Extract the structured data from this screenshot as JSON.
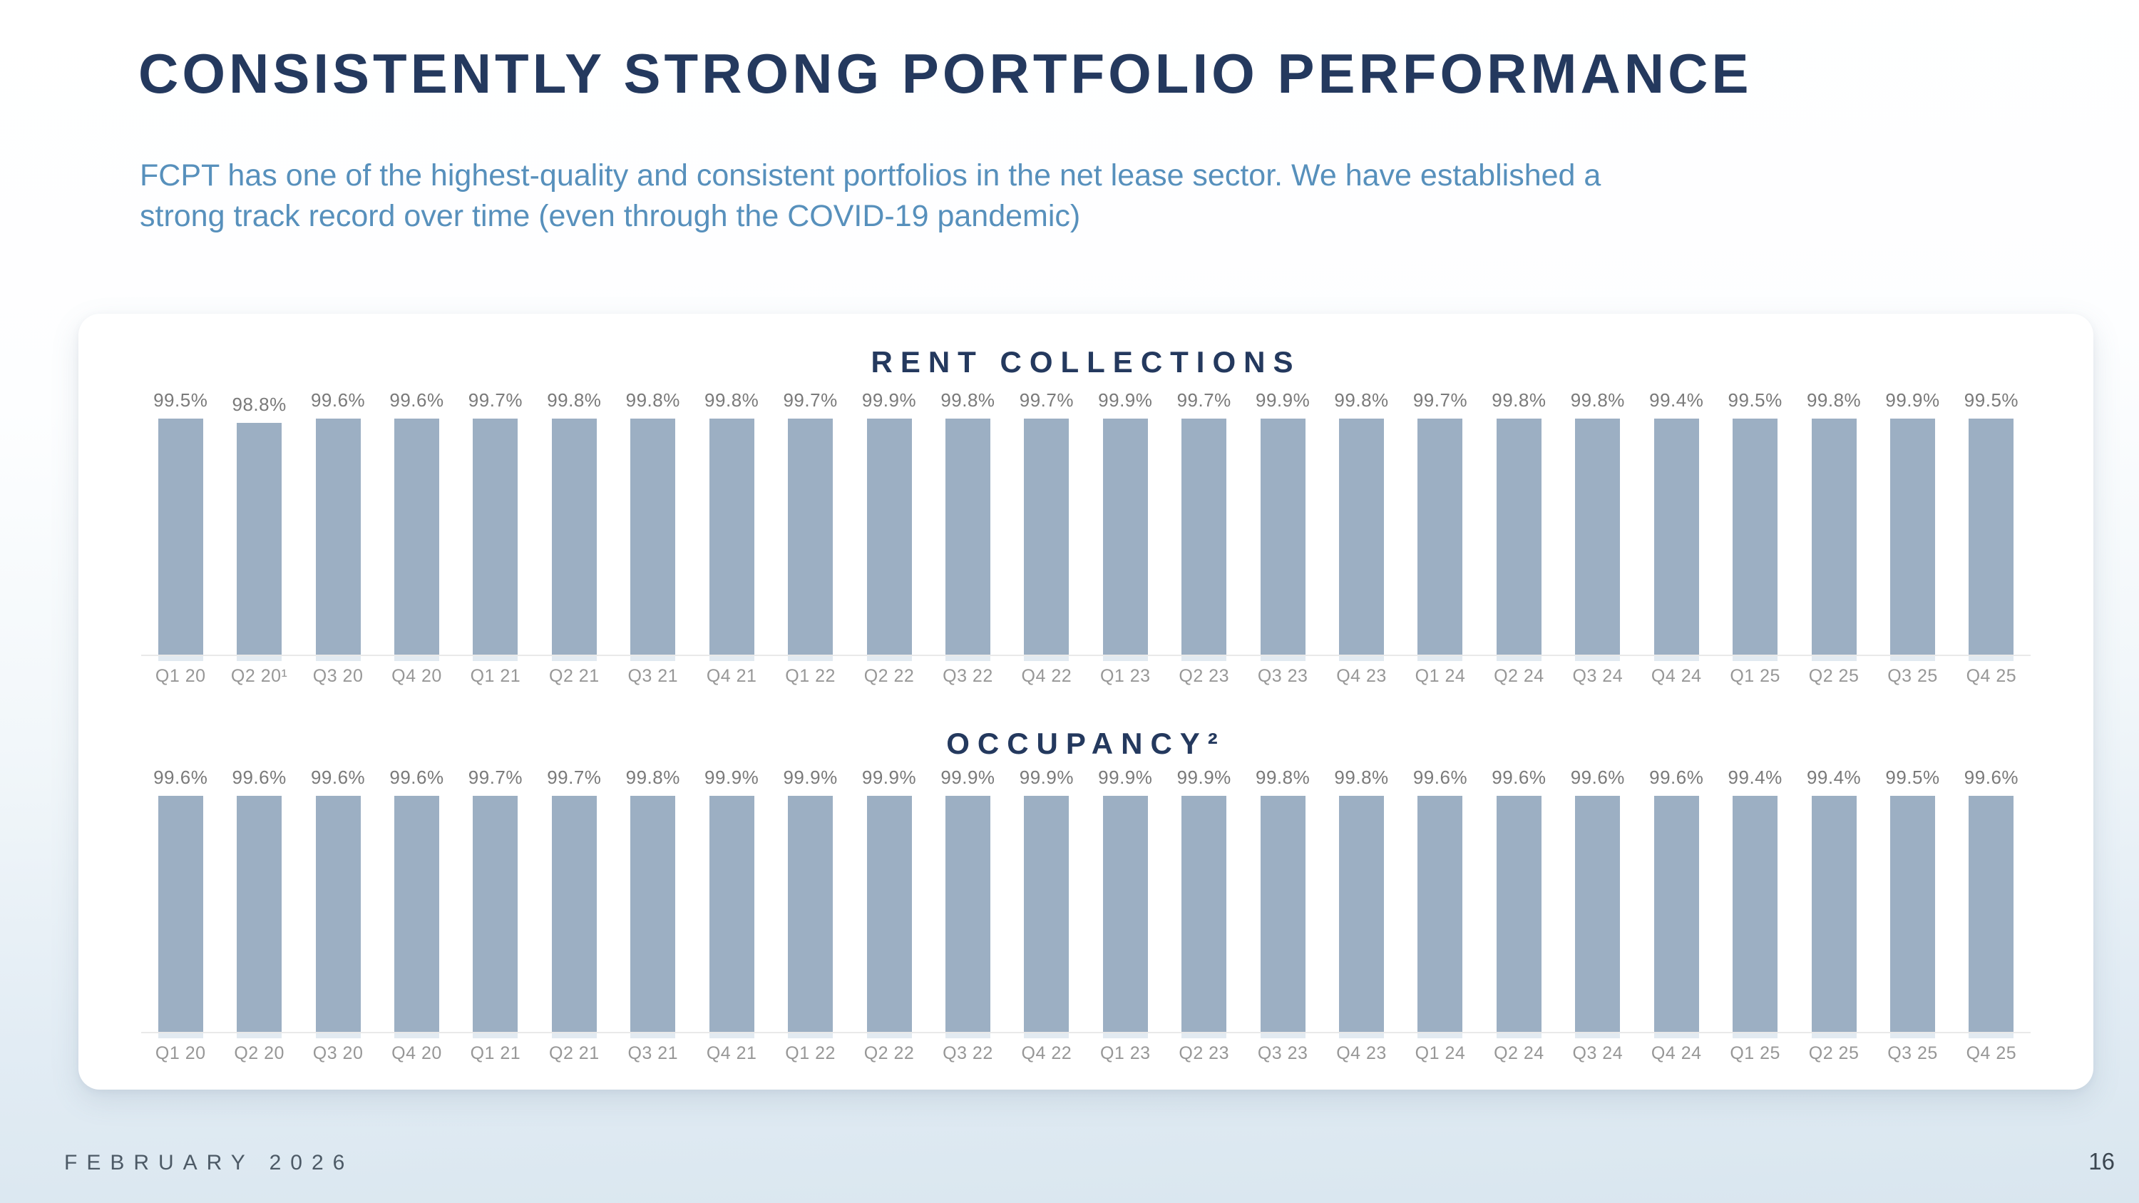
{
  "slide": {
    "title": "CONSISTENTLY STRONG PORTFOLIO PERFORMANCE",
    "subtitle_lines": [
      "FCPT has one of the highest-quality and consistent portfolios in the net lease sector. We have established a",
      "strong track record over time (even through the COVID-19 pandemic)"
    ],
    "footer": {
      "date": "FEBRUARY 2026",
      "page_number": "16"
    }
  },
  "colors": {
    "title_navy": "#24395e",
    "subtitle_blue": "#5790bc",
    "bar_fill": "#9cafc3",
    "value_label_gray": "#7a7a7a",
    "axis_label_gray": "#979797",
    "baseline_gray": "#e9e9e9",
    "tick_blue": "#e2eaf1",
    "card_bg": "#ffffff",
    "page_bg_bottom": "#d9e6ef",
    "footer_gray": "#4d5a66",
    "page_number_gray": "#3b4650"
  },
  "chart_data": [
    {
      "type": "bar",
      "title": "RENT COLLECTIONS",
      "unit": "%",
      "categories": [
        "Q1 20",
        "Q2 20¹",
        "Q3 20",
        "Q4 20",
        "Q1 21",
        "Q2 21",
        "Q3 21",
        "Q4 21",
        "Q1 22",
        "Q2 22",
        "Q3 22",
        "Q4 22",
        "Q1 23",
        "Q2 23",
        "Q3 23",
        "Q4 23",
        "Q1 24",
        "Q2 24",
        "Q3 24",
        "Q4 24",
        "Q1 25",
        "Q2 25",
        "Q3 25",
        "Q4 25"
      ],
      "values": [
        99.5,
        98.8,
        99.6,
        99.6,
        99.7,
        99.8,
        99.8,
        99.8,
        99.7,
        99.9,
        99.8,
        99.7,
        99.9,
        99.7,
        99.9,
        99.8,
        99.7,
        99.8,
        99.8,
        99.4,
        99.5,
        99.8,
        99.9,
        99.5
      ],
      "value_label_format": "0.0%",
      "value_labels_position": "above_bars",
      "y_axis": "hidden",
      "gridlines": false,
      "legend": "none"
    },
    {
      "type": "bar",
      "title": "OCCUPANCY²",
      "unit": "%",
      "categories": [
        "Q1 20",
        "Q2 20",
        "Q3 20",
        "Q4 20",
        "Q1 21",
        "Q2 21",
        "Q3 21",
        "Q4 21",
        "Q1 22",
        "Q2 22",
        "Q3 22",
        "Q4 22",
        "Q1 23",
        "Q2 23",
        "Q3 23",
        "Q4 23",
        "Q1 24",
        "Q2 24",
        "Q3 24",
        "Q4 24",
        "Q1 25",
        "Q2 25",
        "Q3 25",
        "Q4 25"
      ],
      "values": [
        99.6,
        99.6,
        99.6,
        99.6,
        99.7,
        99.7,
        99.8,
        99.9,
        99.9,
        99.9,
        99.9,
        99.9,
        99.9,
        99.9,
        99.8,
        99.8,
        99.6,
        99.6,
        99.6,
        99.6,
        99.4,
        99.4,
        99.5,
        99.6
      ],
      "value_label_format": "0.0%",
      "value_labels_position": "above_bars",
      "y_axis": "hidden",
      "gridlines": false,
      "legend": "none"
    }
  ]
}
